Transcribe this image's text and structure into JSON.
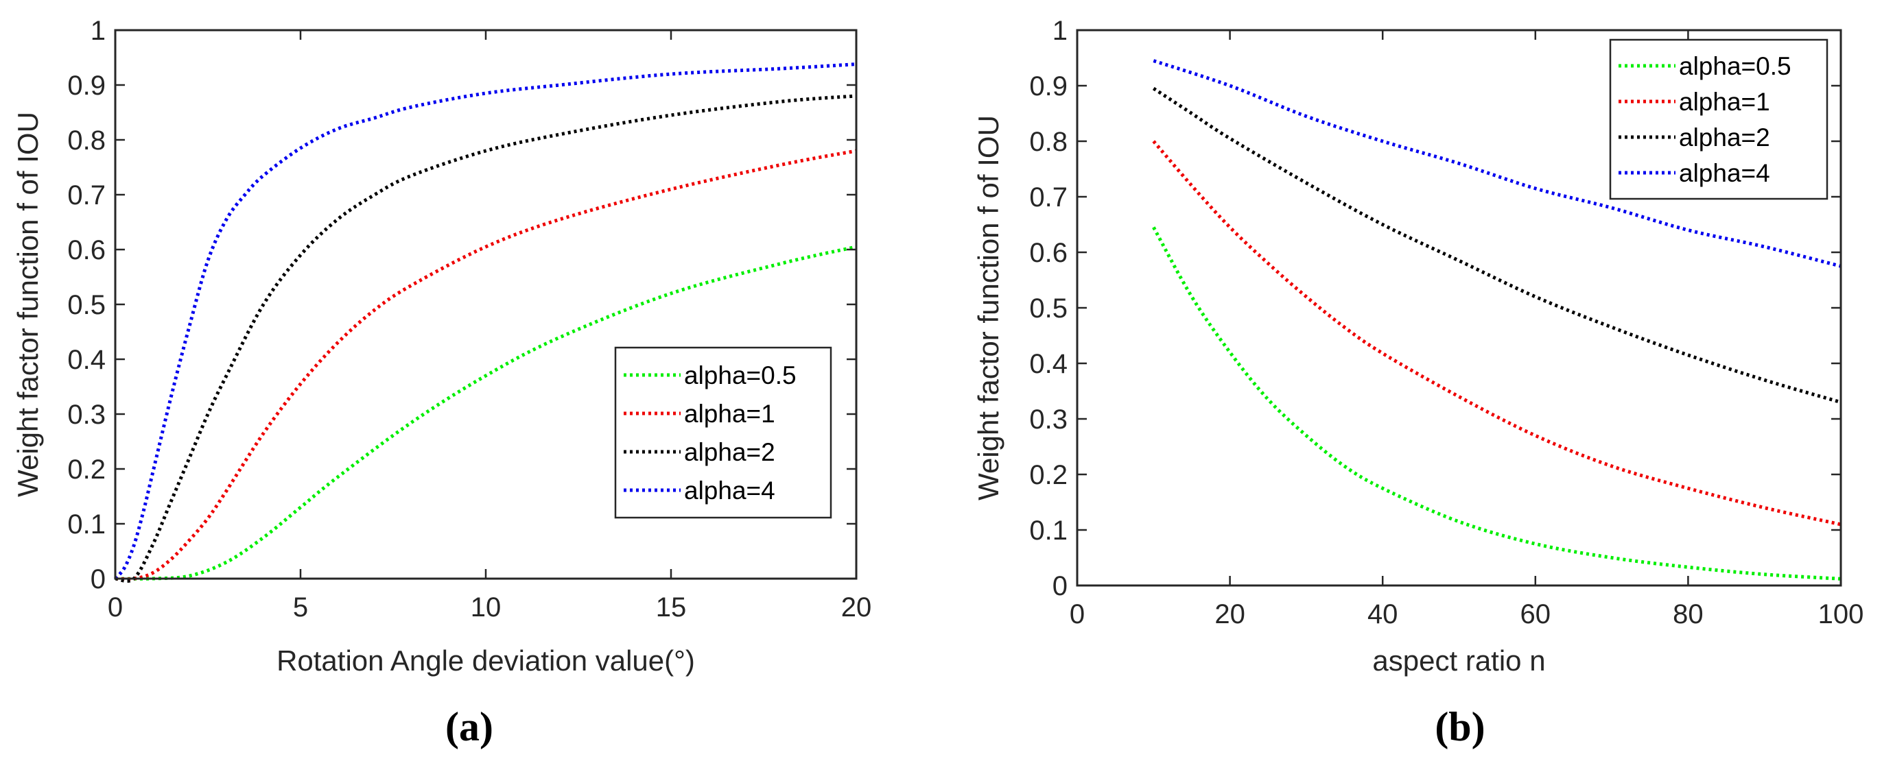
{
  "panels": [
    {
      "caption": "(a)",
      "chart_data": {
        "type": "line",
        "title": "",
        "xlabel": "Rotation Angle deviation value(°)",
        "ylabel": "Weight factor function  f of IOU",
        "xlim": [
          0,
          20
        ],
        "ylim": [
          0,
          1
        ],
        "xticks": [
          0,
          5,
          10,
          15,
          20
        ],
        "xtick_labels": [
          "0",
          "5",
          "10",
          "15",
          "20"
        ],
        "yticks": [
          0,
          0.1,
          0.2,
          0.3,
          0.4,
          0.5,
          0.6,
          0.7,
          0.8,
          0.9,
          1
        ],
        "ytick_labels": [
          "0",
          "0.1",
          "0.2",
          "0.3",
          "0.4",
          "0.5",
          "0.6",
          "0.7",
          "0.8",
          "0.9",
          "1"
        ],
        "grid": false,
        "legend_position": "lower-right",
        "line_style": "dotted",
        "series": [
          {
            "name": "alpha=0.5",
            "color": "#00ee00",
            "x": [
              0,
              1,
              2,
              3,
              4,
              5,
              6,
              8,
              10,
              12,
              15,
              18,
              20
            ],
            "y": [
              0,
              0,
              0.005,
              0.03,
              0.075,
              0.13,
              0.185,
              0.285,
              0.37,
              0.44,
              0.52,
              0.575,
              0.605
            ]
          },
          {
            "name": "alpha=1",
            "color": "#ee0000",
            "x": [
              0,
              0.5,
              1,
              1.5,
              2,
              2.5,
              3,
              4,
              5,
              6,
              7,
              8,
              10,
              12,
              15,
              18,
              20
            ],
            "y": [
              0,
              0,
              0.01,
              0.035,
              0.07,
              0.11,
              0.16,
              0.265,
              0.355,
              0.43,
              0.49,
              0.535,
              0.605,
              0.655,
              0.71,
              0.755,
              0.78
            ]
          },
          {
            "name": "alpha=2",
            "color": "#000000",
            "x": [
              0,
              0.5,
              1,
              1.5,
              2,
              2.5,
              3,
              4,
              5,
              6,
              7,
              8,
              10,
              12,
              15,
              18,
              20
            ],
            "y": [
              0,
              0,
              0.06,
              0.14,
              0.22,
              0.3,
              0.37,
              0.5,
              0.59,
              0.655,
              0.7,
              0.735,
              0.78,
              0.81,
              0.845,
              0.87,
              0.88
            ]
          },
          {
            "name": "alpha=4",
            "color": "#0000ee",
            "x": [
              0,
              0.25,
              0.5,
              0.75,
              1,
              1.5,
              2,
              2.5,
              3,
              3.5,
              4,
              5,
              6,
              7,
              8,
              10,
              12,
              15,
              18,
              20
            ],
            "y": [
              0,
              0.02,
              0.06,
              0.12,
              0.19,
              0.33,
              0.46,
              0.58,
              0.655,
              0.7,
              0.735,
              0.785,
              0.82,
              0.84,
              0.86,
              0.885,
              0.9,
              0.92,
              0.93,
              0.938
            ]
          }
        ]
      }
    },
    {
      "caption": "(b)",
      "chart_data": {
        "type": "line",
        "title": "",
        "xlabel": "aspect ratio n",
        "ylabel": "Weight factor function  f of IOU",
        "xlim": [
          0,
          100
        ],
        "ylim": [
          0,
          1
        ],
        "xticks": [
          0,
          20,
          40,
          60,
          80,
          100
        ],
        "xtick_labels": [
          "0",
          "20",
          "40",
          "60",
          "80",
          "100"
        ],
        "yticks": [
          0,
          0.1,
          0.2,
          0.3,
          0.4,
          0.5,
          0.6,
          0.7,
          0.8,
          0.9,
          1
        ],
        "ytick_labels": [
          "0",
          "0.1",
          "0.2",
          "0.3",
          "0.4",
          "0.5",
          "0.6",
          "0.7",
          "0.8",
          "0.9",
          "1"
        ],
        "grid": false,
        "legend_position": "top-right",
        "line_style": "dotted",
        "series": [
          {
            "name": "alpha=0.5",
            "color": "#00ee00",
            "x": [
              10,
              15,
              20,
              25,
              30,
              35,
              40,
              50,
              60,
              70,
              80,
              90,
              100
            ],
            "y": [
              0.645,
              0.52,
              0.42,
              0.335,
              0.27,
              0.215,
              0.175,
              0.115,
              0.075,
              0.05,
              0.033,
              0.02,
              0.012
            ]
          },
          {
            "name": "alpha=1",
            "color": "#ee0000",
            "x": [
              10,
              15,
              20,
              25,
              30,
              35,
              40,
              50,
              60,
              70,
              80,
              90,
              100
            ],
            "y": [
              0.8,
              0.72,
              0.645,
              0.58,
              0.52,
              0.465,
              0.418,
              0.34,
              0.27,
              0.215,
              0.175,
              0.14,
              0.11
            ]
          },
          {
            "name": "alpha=2",
            "color": "#000000",
            "x": [
              10,
              15,
              20,
              30,
              40,
              50,
              60,
              70,
              80,
              90,
              100
            ],
            "y": [
              0.895,
              0.85,
              0.805,
              0.725,
              0.65,
              0.585,
              0.52,
              0.465,
              0.415,
              0.37,
              0.33
            ]
          },
          {
            "name": "alpha=4",
            "color": "#0000ee",
            "x": [
              10,
              20,
              30,
              40,
              50,
              60,
              70,
              80,
              90,
              100
            ],
            "y": [
              0.945,
              0.9,
              0.845,
              0.8,
              0.76,
              0.715,
              0.68,
              0.64,
              0.61,
              0.575
            ]
          }
        ]
      }
    }
  ]
}
